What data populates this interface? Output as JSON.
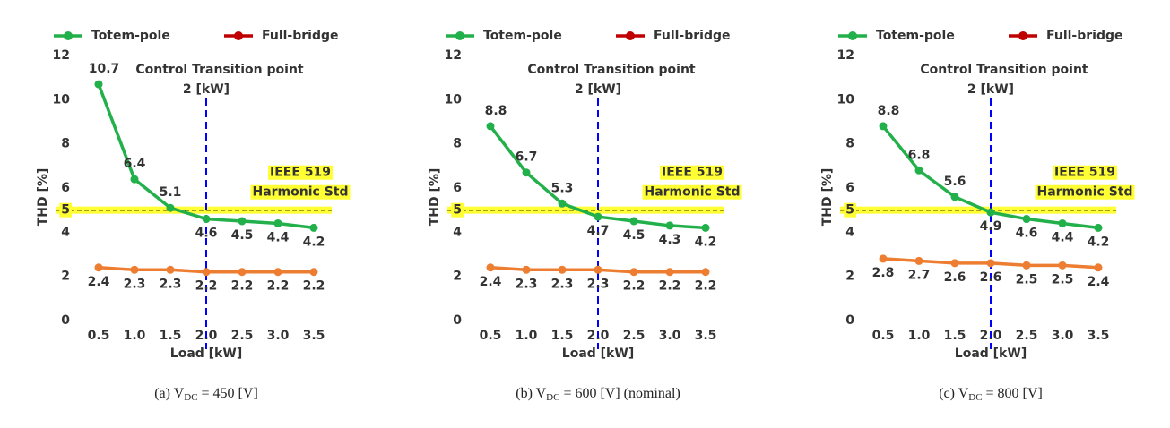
{
  "chart_data": [
    {
      "type": "line",
      "x_label": "Load [kW]",
      "y_label": "THD [%]",
      "categories": [
        "0.5",
        "1.0",
        "1.5",
        "2.0",
        "2.5",
        "3.0",
        "3.5"
      ],
      "ylim": [
        0,
        12
      ],
      "yticks": [
        0,
        2,
        4,
        6,
        8,
        10,
        12
      ],
      "series": [
        {
          "name": "Totem-pole",
          "color": "#22b04b",
          "label_color": "#22b04b",
          "values": [
            10.7,
            6.4,
            5.1,
            4.6,
            4.5,
            4.4,
            4.2
          ]
        },
        {
          "name": "Full-bridge",
          "color": "#ed7d31",
          "label_color": "#c00000",
          "values": [
            2.4,
            2.3,
            2.3,
            2.2,
            2.2,
            2.2,
            2.2
          ]
        }
      ],
      "annotations": {
        "transition": {
          "x": 2,
          "lines": [
            "Control Transition point",
            "2 [kW]"
          ]
        },
        "standard": {
          "y": 5,
          "lines": [
            "IEEE 519",
            "Harmonic Std"
          ]
        }
      },
      "caption": {
        "prefix": "(a)  V",
        "sub": "DC",
        "suffix": " = 450 [V]"
      }
    },
    {
      "type": "line",
      "x_label": "Load [kW]",
      "y_label": "THD [%]",
      "categories": [
        "0.5",
        "1.0",
        "1.5",
        "2.0",
        "2.5",
        "3.0",
        "3.5"
      ],
      "ylim": [
        0,
        12
      ],
      "yticks": [
        0,
        2,
        4,
        6,
        8,
        10,
        12
      ],
      "series": [
        {
          "name": "Totem-pole",
          "color": "#22b04b",
          "label_color": "#22b04b",
          "values": [
            8.8,
            6.7,
            5.3,
            4.7,
            4.5,
            4.3,
            4.2
          ]
        },
        {
          "name": "Full-bridge",
          "color": "#ed7d31",
          "label_color": "#c00000",
          "values": [
            2.4,
            2.3,
            2.3,
            2.3,
            2.2,
            2.2,
            2.2
          ]
        }
      ],
      "annotations": {
        "transition": {
          "x": 2,
          "lines": [
            "Control Transition point",
            "2 [kW]"
          ]
        },
        "standard": {
          "y": 5,
          "lines": [
            "IEEE 519",
            "Harmonic Std"
          ]
        }
      },
      "caption": {
        "prefix": "(b)  V",
        "sub": "DC",
        "suffix": " = 600 [V]  (nominal)"
      }
    },
    {
      "type": "line",
      "x_label": "Load [kW]",
      "y_label": "THD [%]",
      "categories": [
        "0.5",
        "1.0",
        "1.5",
        "2.0",
        "2.5",
        "3.0",
        "3.5"
      ],
      "ylim": [
        0,
        12
      ],
      "yticks": [
        0,
        2,
        4,
        6,
        8,
        10,
        12
      ],
      "series": [
        {
          "name": "Totem-pole",
          "color": "#22b04b",
          "label_color": "#22b04b",
          "values": [
            8.8,
            6.8,
            5.6,
            4.9,
            4.6,
            4.4,
            4.2
          ]
        },
        {
          "name": "Full-bridge",
          "color": "#ed7d31",
          "label_color": "#c00000",
          "values": [
            2.8,
            2.7,
            2.6,
            2.6,
            2.5,
            2.5,
            2.4
          ]
        }
      ],
      "annotations": {
        "transition": {
          "x": 2,
          "lines": [
            "Control Transition point",
            "2 [kW]"
          ]
        },
        "standard": {
          "y": 5,
          "lines": [
            "IEEE 519",
            "Harmonic Std"
          ]
        }
      },
      "caption": {
        "prefix": "(c)  V",
        "sub": "DC",
        "suffix": " = 800 [V]"
      }
    }
  ]
}
